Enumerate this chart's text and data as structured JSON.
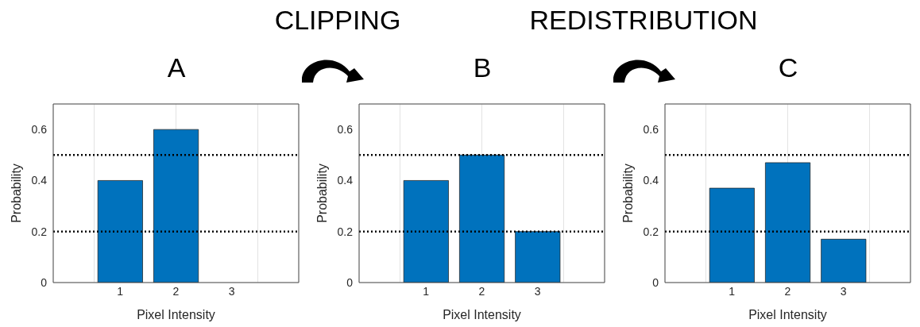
{
  "chart_data": [
    {
      "type": "bar",
      "title": "A",
      "x": [
        1,
        2,
        3
      ],
      "values": [
        0.4,
        0.6,
        0
      ],
      "color": "#0072bd",
      "xlim": [
        -0.2,
        4.2
      ],
      "xticks": [
        1,
        2,
        3
      ],
      "ylim": [
        0,
        0.7
      ],
      "yticks": [
        0,
        0.2,
        0.4,
        0.6
      ],
      "xlabel": "Pixel Intensity",
      "ylabel": "Probability",
      "grid": true,
      "ref_lines": [
        {
          "axis": "y",
          "value": 0.5,
          "line_style": "dotted",
          "color": "#000000"
        },
        {
          "axis": "y",
          "value": 0.2,
          "line_style": "dotted",
          "color": "#000000"
        }
      ]
    },
    {
      "type": "bar",
      "title": "B",
      "annotations": [
        "CLIPPING"
      ],
      "x": [
        1,
        2,
        3
      ],
      "values": [
        0.4,
        0.5,
        0.2
      ],
      "color": "#0072bd",
      "xlim": [
        -0.2,
        4.2
      ],
      "xticks": [
        1,
        2,
        3
      ],
      "ylim": [
        0,
        0.7
      ],
      "yticks": [
        0,
        0.2,
        0.4,
        0.6
      ],
      "xlabel": "Pixel Intensity",
      "ylabel": "Probability",
      "grid": true,
      "ref_lines": [
        {
          "axis": "y",
          "value": 0.5,
          "line_style": "dotted",
          "color": "#000000"
        },
        {
          "axis": "y",
          "value": 0.2,
          "line_style": "dotted",
          "color": "#000000"
        }
      ]
    },
    {
      "type": "bar",
      "title": "C",
      "annotations": [
        "REDISTRIBUTION"
      ],
      "x": [
        1,
        2,
        3
      ],
      "values": [
        0.37,
        0.47,
        0.17
      ],
      "color": "#0072bd",
      "xlim": [
        -0.2,
        4.2
      ],
      "xticks": [
        1,
        2,
        3
      ],
      "ylim": [
        0,
        0.7
      ],
      "yticks": [
        0,
        0.2,
        0.4,
        0.6
      ],
      "xlabel": "Pixel Intensity",
      "ylabel": "Probability",
      "grid": true,
      "ref_lines": [
        {
          "axis": "y",
          "value": 0.5,
          "line_style": "dotted",
          "color": "#000000"
        },
        {
          "axis": "y",
          "value": 0.2,
          "line_style": "dotted",
          "color": "#000000"
        }
      ]
    }
  ]
}
